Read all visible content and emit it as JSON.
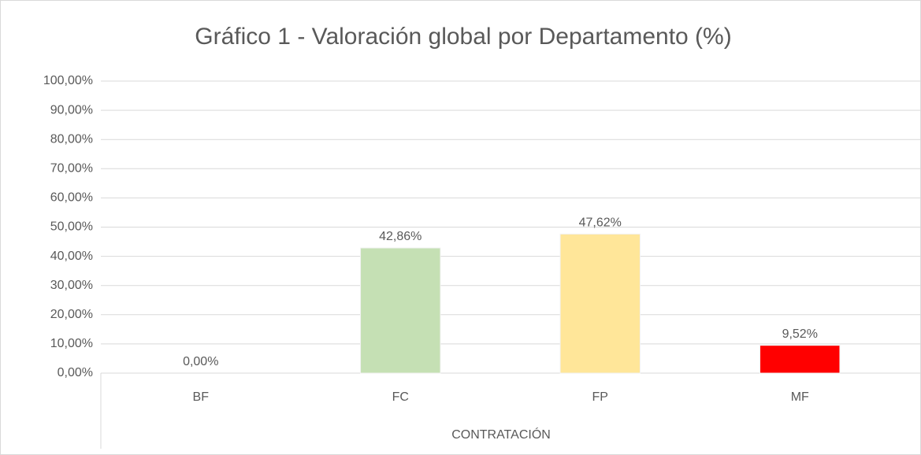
{
  "chart_data": {
    "type": "bar",
    "title": "Gráfico 1 - Valoración global por Departamento (%)",
    "xlabel": "CONTRATACIÓN",
    "categories": [
      "BF",
      "FC",
      "FP",
      "MF"
    ],
    "values": [
      0,
      42.86,
      47.62,
      9.52
    ],
    "value_labels": [
      "0,00%",
      "42,86%",
      "47,62%",
      "9,52%"
    ],
    "colors": [
      "#4472c4",
      "#c5e0b4",
      "#ffe699",
      "#ff0000"
    ],
    "ylim": [
      0,
      100
    ],
    "yticks": [
      {
        "value": 0,
        "label": "0,00%"
      },
      {
        "value": 10,
        "label": "10,00%"
      },
      {
        "value": 20,
        "label": "20,00%"
      },
      {
        "value": 30,
        "label": "30,00%"
      },
      {
        "value": 40,
        "label": "40,00%"
      },
      {
        "value": 50,
        "label": "50,00%"
      },
      {
        "value": 60,
        "label": "60,00%"
      },
      {
        "value": 70,
        "label": "70,00%"
      },
      {
        "value": 80,
        "label": "80,00%"
      },
      {
        "value": 90,
        "label": "90,00%"
      },
      {
        "value": 100,
        "label": "100,00%"
      }
    ],
    "grid": true
  }
}
